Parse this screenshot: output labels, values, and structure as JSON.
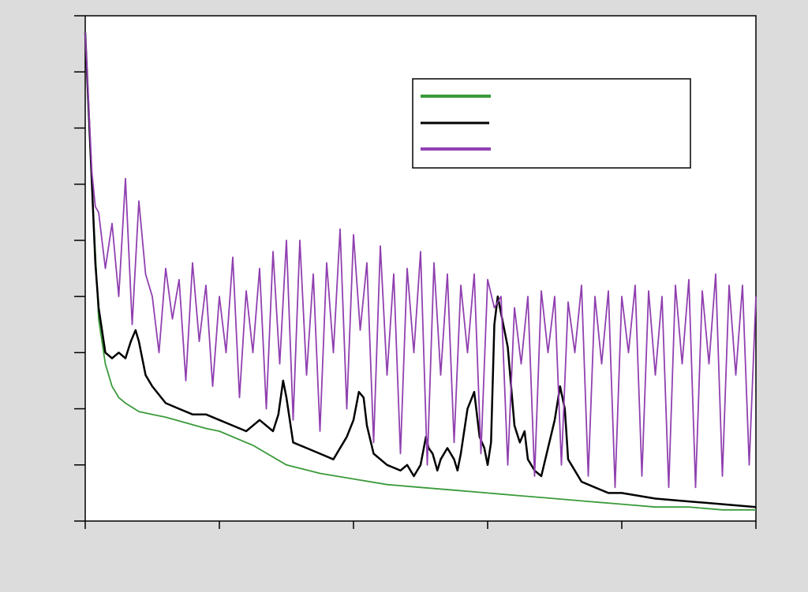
{
  "chart_data": {
    "type": "line",
    "title": "",
    "xlabel": "",
    "ylabel": "",
    "xlim": [
      0,
      100
    ],
    "ylim": [
      0,
      90
    ],
    "x_ticks": [
      0,
      20,
      40,
      60,
      80,
      100
    ],
    "y_ticks": [
      0,
      10,
      20,
      30,
      40,
      50,
      60,
      70,
      80,
      90
    ],
    "grid": false,
    "legend_position": "top-right",
    "series": [
      {
        "color": "#3a9a3a",
        "x": [
          0,
          1,
          2,
          3,
          4,
          5,
          6,
          8,
          10,
          12,
          15,
          18,
          20,
          25,
          30,
          35,
          40,
          45,
          50,
          55,
          60,
          65,
          70,
          75,
          80,
          85,
          90,
          95,
          100
        ],
        "y": [
          87,
          60,
          36,
          28,
          24,
          22,
          21,
          19.5,
          19,
          18.5,
          17.5,
          16.5,
          16,
          13.5,
          10,
          8.5,
          7.5,
          6.5,
          6,
          5.5,
          5,
          4.5,
          4,
          3.5,
          3,
          2.5,
          2.5,
          2,
          2
        ]
      },
      {
        "color": "#000000",
        "x": [
          0,
          1,
          1.5,
          2,
          3,
          4,
          5,
          6,
          6.8,
          7.5,
          8,
          9,
          10,
          12,
          14,
          16,
          18,
          20,
          22,
          24,
          26,
          27,
          28,
          28.8,
          29.5,
          30,
          31,
          33,
          35,
          37,
          39,
          40,
          40.8,
          41.5,
          42,
          43,
          45,
          47,
          48,
          49,
          50,
          50.8,
          51.2,
          51.8,
          52.5,
          53,
          54,
          55,
          55.5,
          56,
          57,
          58,
          58.8,
          59.5,
          60,
          60.5,
          61,
          61.5,
          62,
          63,
          64,
          64.8,
          65.5,
          66,
          67,
          68,
          69,
          70,
          70.8,
          71.5,
          72,
          74,
          76,
          78,
          80,
          85,
          90,
          95,
          100
        ],
        "y": [
          87,
          60,
          46,
          38,
          30,
          29,
          30,
          29,
          32,
          34,
          32,
          26,
          24,
          21,
          20,
          19,
          19,
          18,
          17,
          16,
          18,
          17,
          16,
          19,
          25,
          22,
          14,
          13,
          12,
          11,
          15,
          18,
          23,
          22,
          17,
          12,
          10,
          9,
          10,
          8,
          10,
          15,
          13,
          12,
          9,
          11,
          13,
          11,
          9,
          12,
          20,
          23,
          15,
          13,
          10,
          14,
          35,
          40,
          37,
          31,
          17,
          14,
          16,
          11,
          9,
          8,
          13,
          18,
          24,
          20,
          11,
          7,
          6,
          5,
          5,
          4,
          3.5,
          3,
          2.5
        ]
      },
      {
        "color": "#9040b0",
        "x": [
          0,
          1,
          1.5,
          2,
          3,
          4,
          5,
          6,
          7,
          8,
          9,
          10,
          11,
          12,
          13,
          14,
          15,
          16,
          17,
          18,
          19,
          20,
          21,
          22,
          23,
          24,
          25,
          26,
          27,
          28,
          29,
          30,
          31,
          32,
          33,
          34,
          35,
          36,
          37,
          38,
          39,
          40,
          41,
          42,
          43,
          44,
          45,
          46,
          47,
          48,
          49,
          50,
          51,
          52,
          53,
          54,
          55,
          56,
          57,
          58,
          59,
          60,
          61,
          62,
          63,
          64,
          65,
          66,
          67,
          68,
          69,
          70,
          71,
          72,
          73,
          74,
          75,
          76,
          77,
          78,
          79,
          80,
          81,
          82,
          83,
          84,
          85,
          86,
          87,
          88,
          89,
          90,
          91,
          92,
          93,
          94,
          95,
          96,
          97,
          98,
          99,
          100
        ],
        "y": [
          87,
          62,
          56,
          55,
          45,
          53,
          40,
          61,
          35,
          57,
          44,
          40,
          30,
          45,
          36,
          43,
          25,
          46,
          32,
          42,
          24,
          40,
          30,
          47,
          22,
          41,
          30,
          45,
          20,
          48,
          28,
          50,
          18,
          50,
          26,
          44,
          16,
          46,
          30,
          52,
          20,
          51,
          34,
          46,
          14,
          49,
          26,
          44,
          12,
          45,
          30,
          48,
          10,
          46,
          26,
          44,
          14,
          42,
          30,
          44,
          12,
          43,
          38,
          40,
          10,
          38,
          28,
          40,
          8,
          41,
          30,
          40,
          10,
          39,
          30,
          42,
          8,
          40,
          28,
          41,
          6,
          40,
          30,
          42,
          8,
          41,
          26,
          40,
          6,
          42,
          28,
          43,
          6,
          41,
          28,
          44,
          8,
          42,
          26,
          42,
          10,
          40
        ]
      }
    ]
  }
}
